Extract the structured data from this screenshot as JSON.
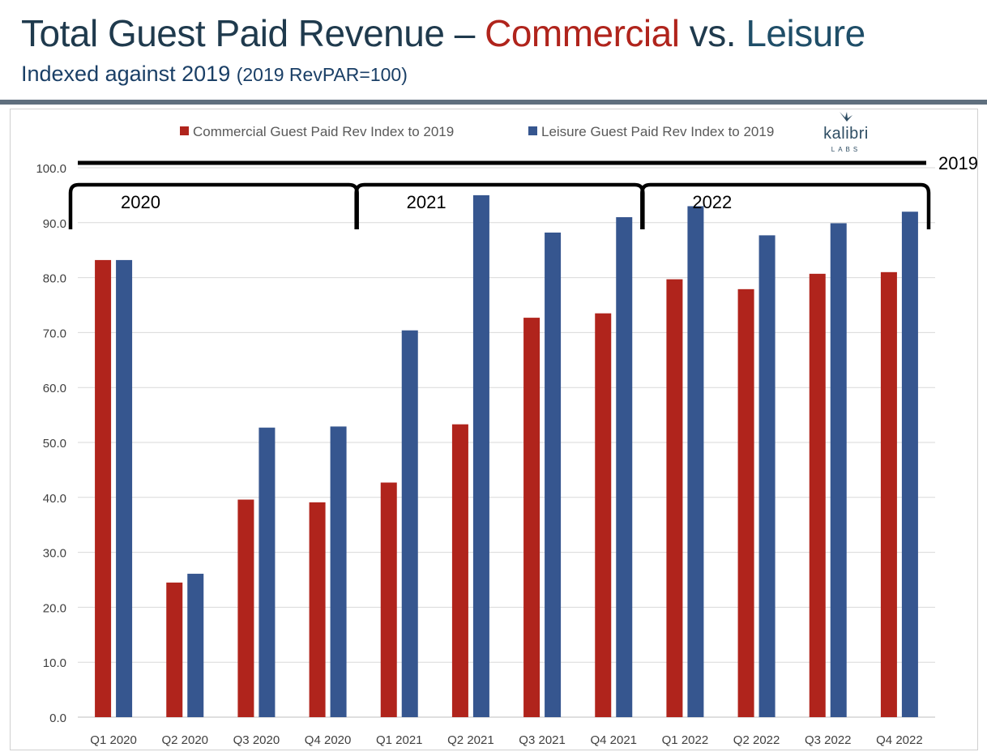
{
  "header": {
    "title_part1": "Total Guest Paid Revenue – ",
    "title_commercial": "Commercial",
    "title_part2": " vs. ",
    "title_leisure": "Leisure",
    "subtitle_main": "Indexed against 2019 ",
    "subtitle_paren": "(2019 RevPAR=100)"
  },
  "logo": {
    "name": "kalibri",
    "sub": "LABS",
    "icon": "bird-icon"
  },
  "colors": {
    "commercial": "#b0241c",
    "leisure": "#36568f",
    "title_dark": "#1f3a4d",
    "commercial_text": "#b0241c",
    "leisure_text": "#1f4e68"
  },
  "chart_data": {
    "type": "bar",
    "categories": [
      "Q1 2020",
      "Q2 2020",
      "Q3 2020",
      "Q4 2020",
      "Q1 2021",
      "Q2 2021",
      "Q3 2021",
      "Q4 2021",
      "Q1 2022",
      "Q2 2022",
      "Q3 2022",
      "Q4 2022"
    ],
    "series": [
      {
        "name": "Commercial Guest Paid Rev Index to 2019",
        "color": "#b0241c",
        "values": [
          83.2,
          24.5,
          39.6,
          39.1,
          42.7,
          53.3,
          72.7,
          73.5,
          79.7,
          77.9,
          80.7,
          81.0
        ]
      },
      {
        "name": "Leisure Guest Paid Rev Index to 2019",
        "color": "#36568f",
        "values": [
          83.2,
          26.1,
          52.7,
          52.9,
          70.4,
          95.0,
          88.2,
          91.0,
          93.0,
          87.7,
          89.9,
          92.0
        ]
      }
    ],
    "ylim": [
      0,
      100
    ],
    "yticks": [
      "0.0",
      "10.0",
      "20.0",
      "30.0",
      "40.0",
      "50.0",
      "60.0",
      "70.0",
      "80.0",
      "90.0",
      "100.0"
    ],
    "grid": true,
    "legend": "top",
    "annotations": {
      "baseline_label": "2019",
      "baseline_value": 100,
      "brackets": [
        {
          "label": "2020",
          "from": 0,
          "to": 3
        },
        {
          "label": "2021",
          "from": 4,
          "to": 7
        },
        {
          "label": "2022",
          "from": 8,
          "to": 11
        }
      ]
    }
  }
}
